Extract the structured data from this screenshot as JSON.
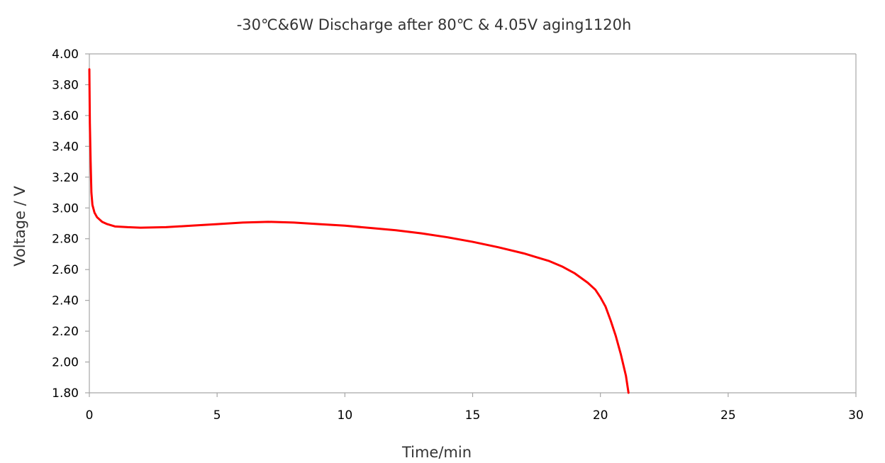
{
  "chart_data": {
    "type": "line",
    "title": "-30℃&6W Discharge after  80℃ & 4.05V aging1120h",
    "xlabel": "Time/min",
    "ylabel": "Voltage / V",
    "xlim": [
      0,
      30
    ],
    "ylim": [
      1.8,
      4.0
    ],
    "x_ticks": [
      "0",
      "5",
      "10",
      "15",
      "20",
      "25",
      "30"
    ],
    "y_ticks": [
      "1.80",
      "2.00",
      "2.20",
      "2.40",
      "2.60",
      "2.80",
      "3.00",
      "3.20",
      "3.40",
      "3.60",
      "3.80",
      "4.00"
    ],
    "grid": false,
    "legend": "none",
    "series": [
      {
        "color": "#ff0000",
        "x": [
          0,
          0.02,
          0.05,
          0.08,
          0.12,
          0.2,
          0.3,
          0.5,
          0.7,
          1.0,
          1.5,
          2.0,
          3.0,
          4.0,
          5.0,
          6.0,
          7.0,
          8.0,
          9.0,
          10.0,
          11.0,
          12.0,
          13.0,
          14.0,
          15.0,
          16.0,
          17.0,
          17.5,
          18.0,
          18.5,
          19.0,
          19.5,
          19.8,
          20.0,
          20.2,
          20.4,
          20.6,
          20.8,
          21.0,
          21.1
        ],
        "values": [
          3.9,
          3.55,
          3.3,
          3.1,
          3.02,
          2.97,
          2.94,
          2.91,
          2.895,
          2.88,
          2.875,
          2.872,
          2.875,
          2.885,
          2.895,
          2.905,
          2.91,
          2.905,
          2.895,
          2.885,
          2.87,
          2.855,
          2.835,
          2.81,
          2.78,
          2.745,
          2.705,
          2.68,
          2.655,
          2.62,
          2.575,
          2.515,
          2.47,
          2.42,
          2.36,
          2.27,
          2.17,
          2.05,
          1.91,
          1.8
        ]
      }
    ]
  }
}
